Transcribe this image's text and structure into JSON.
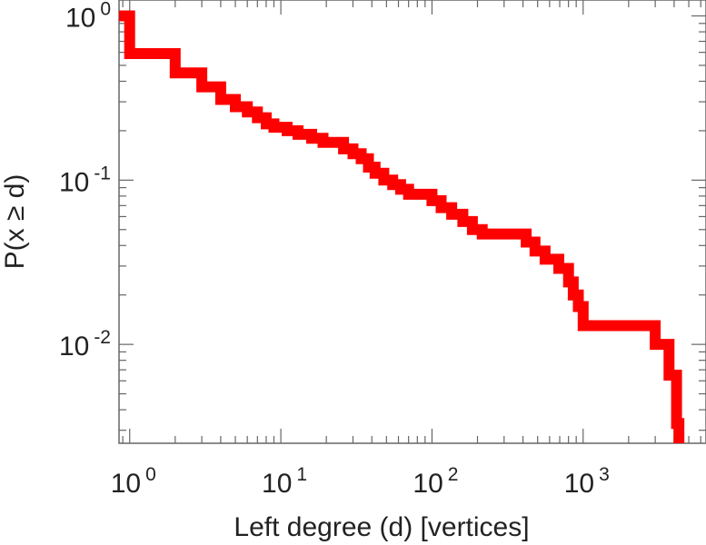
{
  "chart_data": {
    "type": "line",
    "title": "",
    "xlabel": "Left degree (d) [vertices]",
    "ylabel": "P(x ≥ d)",
    "xscale": "log",
    "yscale": "log",
    "xlim": [
      0.85,
      6500
    ],
    "ylim": [
      0.0025,
      1.25
    ],
    "grid": false,
    "legend": "none",
    "line_color": "#ff0000",
    "x_ticks": [
      {
        "base": "10",
        "exp": "0",
        "value": 1
      },
      {
        "base": "10",
        "exp": "1",
        "value": 10
      },
      {
        "base": "10",
        "exp": "2",
        "value": 100
      },
      {
        "base": "10",
        "exp": "3",
        "value": 1000
      }
    ],
    "y_ticks": [
      {
        "base": "10",
        "exp": "0",
        "value": 1
      },
      {
        "base": "10",
        "exp": "-1",
        "value": 0.1
      },
      {
        "base": "10",
        "exp": "-2",
        "value": 0.01
      }
    ],
    "series": [
      {
        "type": "step",
        "points": [
          [
            0.85,
            1.0
          ],
          [
            1.0,
            1.0
          ],
          [
            1.0,
            0.59
          ],
          [
            2.0,
            0.59
          ],
          [
            2.0,
            0.45
          ],
          [
            3.0,
            0.45
          ],
          [
            3.0,
            0.37
          ],
          [
            4.0,
            0.37
          ],
          [
            4.0,
            0.31
          ],
          [
            5.0,
            0.31
          ],
          [
            5.0,
            0.28
          ],
          [
            6.0,
            0.28
          ],
          [
            6.0,
            0.26
          ],
          [
            7.0,
            0.26
          ],
          [
            7.0,
            0.24
          ],
          [
            8.0,
            0.24
          ],
          [
            8.0,
            0.22
          ],
          [
            9.0,
            0.22
          ],
          [
            9.0,
            0.21
          ],
          [
            11.0,
            0.21
          ],
          [
            11.0,
            0.2
          ],
          [
            13.0,
            0.2
          ],
          [
            13.0,
            0.19
          ],
          [
            16.0,
            0.19
          ],
          [
            16.0,
            0.18
          ],
          [
            19.0,
            0.18
          ],
          [
            19.0,
            0.17
          ],
          [
            26.0,
            0.17
          ],
          [
            26.0,
            0.155
          ],
          [
            30.0,
            0.155
          ],
          [
            30.0,
            0.145
          ],
          [
            34.0,
            0.145
          ],
          [
            34.0,
            0.135
          ],
          [
            38.0,
            0.135
          ],
          [
            38.0,
            0.12
          ],
          [
            42.0,
            0.12
          ],
          [
            42.0,
            0.11
          ],
          [
            48.0,
            0.11
          ],
          [
            48.0,
            0.1
          ],
          [
            55.0,
            0.1
          ],
          [
            55.0,
            0.094
          ],
          [
            62.0,
            0.094
          ],
          [
            62.0,
            0.088
          ],
          [
            70.0,
            0.088
          ],
          [
            70.0,
            0.082
          ],
          [
            100.0,
            0.082
          ],
          [
            100.0,
            0.075
          ],
          [
            115.0,
            0.075
          ],
          [
            115.0,
            0.068
          ],
          [
            135.0,
            0.068
          ],
          [
            135.0,
            0.062
          ],
          [
            160.0,
            0.062
          ],
          [
            160.0,
            0.056
          ],
          [
            185.0,
            0.056
          ],
          [
            185.0,
            0.05
          ],
          [
            215.0,
            0.05
          ],
          [
            215.0,
            0.047
          ],
          [
            420.0,
            0.047
          ],
          [
            420.0,
            0.042
          ],
          [
            480.0,
            0.042
          ],
          [
            480.0,
            0.037
          ],
          [
            560.0,
            0.037
          ],
          [
            560.0,
            0.033
          ],
          [
            690.0,
            0.033
          ],
          [
            690.0,
            0.029
          ],
          [
            800.0,
            0.029
          ],
          [
            800.0,
            0.024
          ],
          [
            860.0,
            0.024
          ],
          [
            860.0,
            0.02
          ],
          [
            930.0,
            0.02
          ],
          [
            930.0,
            0.017
          ],
          [
            1000.0,
            0.017
          ],
          [
            1000.0,
            0.013
          ],
          [
            3000.0,
            0.013
          ],
          [
            3000.0,
            0.01
          ],
          [
            3700.0,
            0.01
          ],
          [
            3700.0,
            0.0065
          ],
          [
            4150.0,
            0.0065
          ],
          [
            4150.0,
            0.0033
          ],
          [
            4300.0,
            0.0033
          ],
          [
            4300.0,
            0.0025
          ]
        ]
      }
    ]
  }
}
